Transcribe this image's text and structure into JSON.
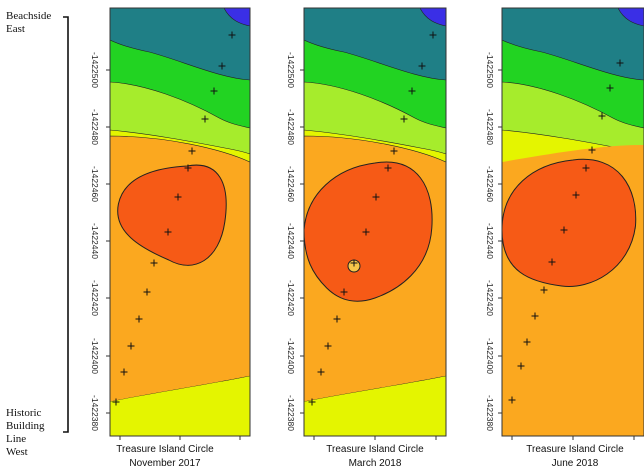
{
  "side_labels": {
    "top_line1": "Beachside",
    "top_line2": "East",
    "bottom_line1": "Historic",
    "bottom_line2": "Building",
    "bottom_line3": "Line",
    "bottom_line4": "West"
  },
  "y_ticks": [
    "-1422500",
    "-1422480",
    "-1422460",
    "-1422440",
    "-1422420",
    "-1422400",
    "-1422380"
  ],
  "panels": [
    {
      "id": "nov2017",
      "x_label": "Treasure Island Circle",
      "date": "November 2017"
    },
    {
      "id": "mar2018",
      "x_label": "Treasure Island Circle",
      "date": "March 2018"
    },
    {
      "id": "jun2018",
      "x_label": "Treasure Island Circle",
      "date": "June 2018"
    }
  ],
  "colors": {
    "blue": "#3a2fe6",
    "teal": "#1f7f86",
    "green": "#22d322",
    "lime": "#a6ec2c",
    "yellow": "#e4f500",
    "orange": "#fba81f",
    "red_orange": "#f65a16",
    "marker": "#111111"
  },
  "legend": {
    "marker_icon": "plus-icon",
    "marker_meaning": "survey point"
  }
}
